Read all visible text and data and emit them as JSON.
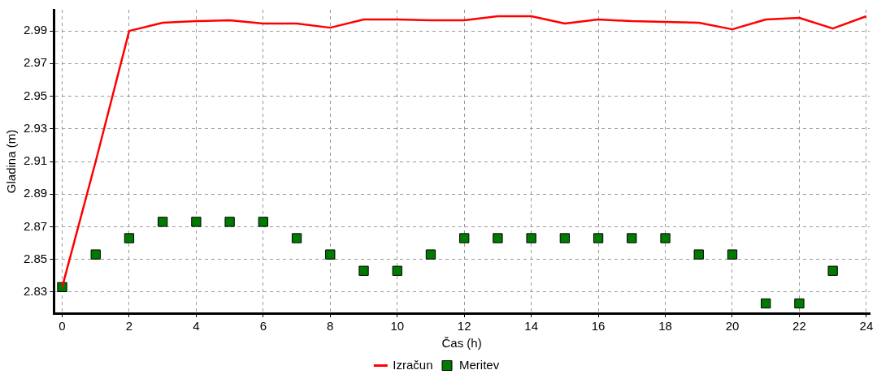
{
  "chart_data": {
    "type": "line",
    "xlabel": "Čas (h)",
    "ylabel": "Gladina (m)",
    "xlim": [
      -0.25,
      24.1
    ],
    "xticks": [
      0,
      2,
      4,
      6,
      8,
      10,
      12,
      14,
      16,
      18,
      20,
      22,
      24
    ],
    "ylim": [
      2.817,
      3.003
    ],
    "yticks": [
      2.83,
      2.85,
      2.87,
      2.89,
      2.91,
      2.93,
      2.95,
      2.97,
      2.99
    ],
    "grid": true,
    "legend": "bottom",
    "series": [
      {
        "name": "Izračun",
        "type": "line",
        "color": "#ff0000",
        "marker": "none",
        "line_style": "solid",
        "x": [
          0,
          1,
          2,
          3,
          4,
          5,
          6,
          7,
          8,
          9,
          10,
          11,
          12,
          13,
          14,
          15,
          16,
          17,
          18,
          19,
          20,
          21,
          22,
          23,
          24
        ],
        "values": [
          2.833,
          2.91,
          2.99,
          2.995,
          2.996,
          2.9965,
          2.9945,
          2.9945,
          2.992,
          2.997,
          2.997,
          2.9965,
          2.9965,
          2.999,
          2.999,
          2.9945,
          2.997,
          2.996,
          2.9955,
          2.995,
          2.991,
          2.997,
          2.998,
          2.9915,
          2.999
        ]
      },
      {
        "name": "Meritev",
        "type": "scatter",
        "color": "#007a00",
        "marker": "square",
        "x": [
          0,
          1,
          2,
          3,
          4,
          5,
          6,
          7,
          8,
          9,
          10,
          11,
          12,
          13,
          14,
          15,
          16,
          17,
          18,
          19,
          20,
          21,
          22,
          23
        ],
        "values": [
          2.833,
          2.853,
          2.863,
          2.873,
          2.873,
          2.873,
          2.873,
          2.863,
          2.853,
          2.843,
          2.843,
          2.853,
          2.863,
          2.863,
          2.863,
          2.863,
          2.863,
          2.863,
          2.863,
          2.853,
          2.853,
          2.823,
          2.823,
          2.843
        ]
      }
    ]
  }
}
